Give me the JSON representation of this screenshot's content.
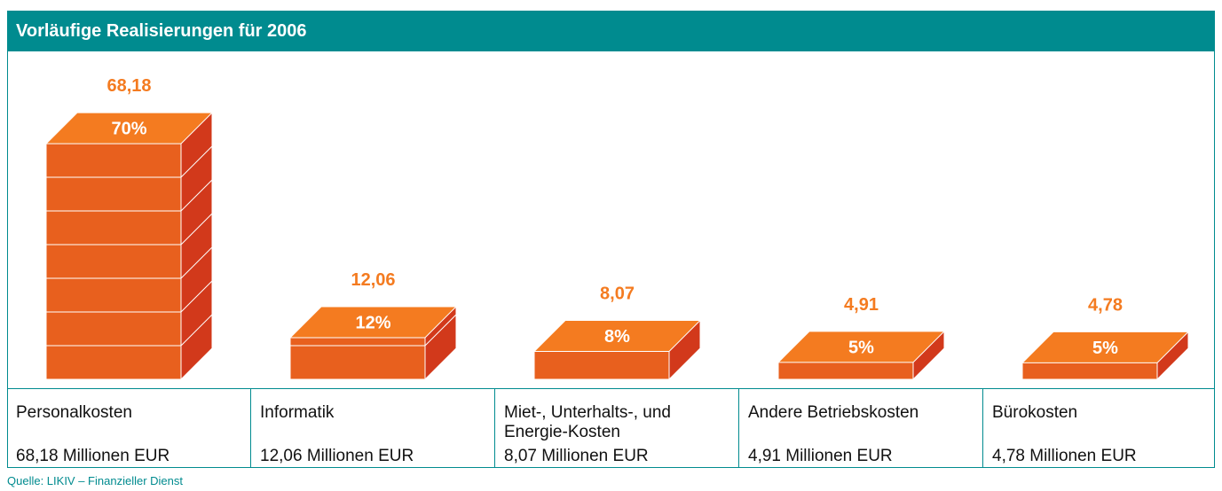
{
  "chart_data": {
    "type": "block3d",
    "title": "Vorläufige Realisierungen für 2006",
    "categories": [
      "Personalkosten",
      "Informatik",
      "Miet-, Unterhalts-, und Energie-Kosten",
      "Andere Betriebskosten",
      "Bürokosten"
    ],
    "values": [
      68.18,
      12.06,
      8.07,
      4.91,
      4.78
    ],
    "value_labels": [
      "68,18",
      "12,06",
      "8,07",
      "4,91",
      "4,78"
    ],
    "shares": [
      70,
      12,
      8,
      5,
      5
    ],
    "share_labels": [
      "70%",
      "12%",
      "8%",
      "5%",
      "5%"
    ],
    "details": [
      "68,18 Millionen EUR",
      "12,06 Millionen EUR",
      "8,07 Millionen EUR",
      "4,91 Millionen EUR",
      "4,78 Millionen EUR"
    ],
    "colors": {
      "top": "#f47b20",
      "front": "#e8601e",
      "side": "#d2391b"
    },
    "source": "Quelle: LIKIV – Finanzieller Dienst"
  }
}
